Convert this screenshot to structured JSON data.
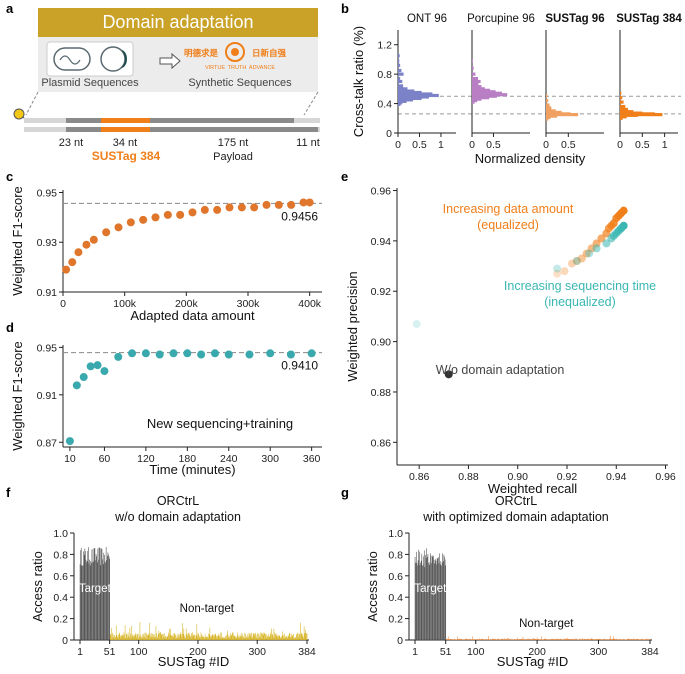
{
  "figure": {
    "panel_labels": [
      "a",
      "b",
      "c",
      "d",
      "e",
      "f",
      "g"
    ]
  },
  "panel_a": {
    "banner": "Domain adaptation",
    "plasmid_label": "Plasmid Sequences",
    "synthetic_label": "Synthetic Sequences",
    "logo_text": [
      "明德求是",
      "日新自强",
      "VIRTUE",
      "TRUTH",
      "ADVANCE"
    ],
    "segments": [
      {
        "label": "23 nt"
      },
      {
        "label": "34 nt"
      },
      {
        "label": "175 nt"
      },
      {
        "label": "11 nt"
      }
    ],
    "sustag_label": "SUSTag 384",
    "payload_label": "Payload",
    "colors": {
      "banner": "#c9a227",
      "tag": "#f07f1a",
      "bar": "#8a8a8a",
      "light": "#d6d6d6",
      "dot": "#f2c718"
    }
  },
  "chart_data": [
    {
      "id": "b",
      "type": "histogram",
      "ylabel": "Cross-talk ratio (%)",
      "xlabel": "Normalized density",
      "yticks": [
        "0",
        "0.4",
        "0.8",
        "1.2"
      ],
      "ylim": [
        0,
        1.4
      ],
      "reference_lines": [
        0.5,
        0.26
      ],
      "panels": [
        {
          "title": "ONT 96",
          "bold": false,
          "color": "#7b82c8",
          "xticks": [
            "0",
            "0.5",
            "1"
          ],
          "xlim": [
            0,
            1.35
          ],
          "bins": [
            [
              1.05,
              0.04
            ],
            [
              0.98,
              0.03
            ],
            [
              0.92,
              0.05
            ],
            [
              0.85,
              0.08
            ],
            [
              0.8,
              0.13
            ],
            [
              0.74,
              0.05
            ],
            [
              0.7,
              0.1
            ],
            [
              0.64,
              0.12
            ],
            [
              0.6,
              0.22
            ],
            [
              0.57,
              0.38
            ],
            [
              0.55,
              0.55
            ],
            [
              0.53,
              0.8
            ],
            [
              0.51,
              0.95
            ],
            [
              0.49,
              0.72
            ],
            [
              0.47,
              0.55
            ],
            [
              0.45,
              0.35
            ],
            [
              0.43,
              0.2
            ],
            [
              0.41,
              0.1
            ],
            [
              0.39,
              0.06
            ]
          ]
        },
        {
          "title": "Porcupine 96",
          "bold": false,
          "color": "#b97fc4",
          "xticks": [
            "0",
            "0.5"
          ],
          "xlim": [
            0,
            1.35
          ],
          "bins": [
            [
              0.98,
              0.02
            ],
            [
              0.88,
              0.04
            ],
            [
              0.8,
              0.08
            ],
            [
              0.74,
              0.14
            ],
            [
              0.7,
              0.2
            ],
            [
              0.66,
              0.15
            ],
            [
              0.63,
              0.22
            ],
            [
              0.6,
              0.3
            ],
            [
              0.58,
              0.42
            ],
            [
              0.56,
              0.55
            ],
            [
              0.54,
              0.7
            ],
            [
              0.52,
              0.82
            ],
            [
              0.5,
              0.58
            ],
            [
              0.48,
              0.4
            ],
            [
              0.46,
              0.22
            ],
            [
              0.44,
              0.12
            ],
            [
              0.42,
              0.06
            ]
          ]
        },
        {
          "title": "SUSTag 96",
          "bold": true,
          "color": "#f0a060",
          "xticks": [
            "0",
            "0.5"
          ],
          "xlim": [
            0,
            1.3
          ],
          "bins": [
            [
              0.5,
              0.03
            ],
            [
              0.44,
              0.05
            ],
            [
              0.38,
              0.08
            ],
            [
              0.34,
              0.12
            ],
            [
              0.3,
              0.22
            ],
            [
              0.28,
              0.35
            ],
            [
              0.26,
              0.55
            ],
            [
              0.25,
              0.72
            ],
            [
              0.23,
              0.25
            ],
            [
              0.21,
              0.1
            ],
            [
              0.19,
              0.05
            ]
          ]
        },
        {
          "title": "SUSTag 384",
          "bold": true,
          "color": "#f07f1a",
          "xticks": [
            "0",
            "0.5",
            "1"
          ],
          "xlim": [
            0,
            1.3
          ],
          "bins": [
            [
              0.54,
              0.03
            ],
            [
              0.48,
              0.05
            ],
            [
              0.42,
              0.08
            ],
            [
              0.36,
              0.12
            ],
            [
              0.32,
              0.18
            ],
            [
              0.29,
              0.3
            ],
            [
              0.27,
              0.5
            ],
            [
              0.26,
              0.78
            ],
            [
              0.25,
              0.95
            ],
            [
              0.24,
              0.4
            ],
            [
              0.22,
              0.15
            ],
            [
              0.2,
              0.06
            ]
          ]
        }
      ]
    },
    {
      "id": "c",
      "type": "scatter",
      "color": "#e0762c",
      "xlabel": "Adapted data amount",
      "ylabel": "Weighted F1-score",
      "xticks": [
        "0",
        "100k",
        "200k",
        "300k",
        "400k"
      ],
      "xlim": [
        0,
        420
      ],
      "yticks": [
        "0.91",
        "0.93",
        "0.95"
      ],
      "ylim": [
        0.91,
        0.951
      ],
      "reference_line": 0.9456,
      "annotation": "0.9456",
      "x": [
        5,
        15,
        25,
        38,
        50,
        70,
        90,
        110,
        130,
        150,
        170,
        190,
        210,
        230,
        250,
        270,
        290,
        310,
        330,
        350,
        370,
        390,
        400
      ],
      "y": [
        0.919,
        0.922,
        0.926,
        0.929,
        0.931,
        0.934,
        0.936,
        0.938,
        0.939,
        0.94,
        0.941,
        0.941,
        0.942,
        0.943,
        0.943,
        0.944,
        0.944,
        0.944,
        0.945,
        0.945,
        0.945,
        0.946,
        0.946
      ]
    },
    {
      "id": "d",
      "type": "scatter",
      "color": "#3aa9ad",
      "xlabel": "Time (minutes)",
      "ylabel": "Weighted F1-score",
      "xticks": [
        "10",
        "60",
        "120",
        "180",
        "240",
        "300",
        "360"
      ],
      "xvals": [
        10,
        60,
        120,
        180,
        240,
        300,
        360
      ],
      "xlim": [
        0,
        375
      ],
      "yticks": [
        "0.87",
        "0.91",
        "0.95"
      ],
      "ytickvals": [
        0.87,
        0.91,
        0.95
      ],
      "ylim": [
        0.866,
        0.952
      ],
      "reference_line": 0.9456,
      "annotation": "0.9410",
      "legend_text": "New sequencing+training",
      "x": [
        10,
        20,
        30,
        40,
        50,
        60,
        80,
        100,
        120,
        140,
        160,
        180,
        200,
        220,
        240,
        270,
        300,
        330,
        360
      ],
      "y": [
        0.871,
        0.918,
        0.925,
        0.934,
        0.935,
        0.93,
        0.942,
        0.945,
        0.945,
        0.944,
        0.945,
        0.945,
        0.944,
        0.945,
        0.944,
        0.944,
        0.945,
        0.944,
        0.945
      ]
    },
    {
      "id": "e",
      "type": "scatter",
      "xlabel": "Weighted recall",
      "ylabel": "Weighted precision",
      "xticks": [
        "0.86",
        "0.88",
        "0.90",
        "0.92",
        "0.94",
        "0.96"
      ],
      "xtickvals": [
        0.86,
        0.88,
        0.9,
        0.92,
        0.94,
        0.96
      ],
      "xlim": [
        0.851,
        0.961
      ],
      "yticks": [
        "0.86",
        "0.88",
        "0.90",
        "0.92",
        "0.94",
        "0.96"
      ],
      "ytickvals": [
        0.86,
        0.88,
        0.9,
        0.92,
        0.94,
        0.96
      ],
      "ylim": [
        0.851,
        0.961
      ],
      "labels": {
        "orange_1": "Increasing data amount",
        "orange_2": "(equalized)",
        "teal_1": "Increasing sequencing time",
        "teal_2": "(inequalized)",
        "black": "W/o domain adaptation"
      },
      "colors": {
        "orange": "#f07f1a",
        "teal": "#3ab7b2",
        "black": "#333333"
      },
      "series": [
        {
          "name": "data amount",
          "color": "#f07f1a",
          "x": [
            0.916,
            0.919,
            0.922,
            0.924,
            0.926,
            0.928,
            0.93,
            0.932,
            0.934,
            0.936,
            0.937,
            0.938,
            0.939,
            0.94,
            0.941,
            0.942,
            0.943
          ],
          "y": [
            0.927,
            0.928,
            0.931,
            0.932,
            0.933,
            0.935,
            0.937,
            0.939,
            0.941,
            0.943,
            0.945,
            0.946,
            0.947,
            0.949,
            0.95,
            0.951,
            0.952
          ],
          "opacity": [
            0.25,
            0.3,
            0.35,
            0.4,
            0.45,
            0.5,
            0.55,
            0.6,
            0.65,
            0.7,
            0.75,
            0.8,
            0.85,
            0.9,
            0.95,
            1.0,
            1.0
          ]
        },
        {
          "name": "sequencing time",
          "color": "#3ab7b2",
          "x": [
            0.859,
            0.916,
            0.924,
            0.929,
            0.932,
            0.936,
            0.938,
            0.939,
            0.94,
            0.941,
            0.942,
            0.943
          ],
          "y": [
            0.907,
            0.929,
            0.932,
            0.935,
            0.937,
            0.939,
            0.941,
            0.942,
            0.943,
            0.944,
            0.945,
            0.946
          ],
          "opacity": [
            0.2,
            0.3,
            0.35,
            0.4,
            0.5,
            0.55,
            0.6,
            0.7,
            0.75,
            0.8,
            0.9,
            1.0
          ]
        },
        {
          "name": "w/o adaptation",
          "color": "#333333",
          "x": [
            0.872
          ],
          "y": [
            0.887
          ],
          "opacity": [
            1.0
          ]
        }
      ]
    },
    {
      "id": "f",
      "type": "bar",
      "title_1": "ORCtrL",
      "title_2": "w/o domain adaptation",
      "xlabel": "SUSTag #ID",
      "ylabel": "Access ratio",
      "xticks": [
        "1",
        "51",
        "100",
        "200",
        "300",
        "384"
      ],
      "xtickvals": [
        1,
        51,
        100,
        200,
        300,
        384
      ],
      "yticks": [
        "0",
        "0.2",
        "0.4",
        "0.6",
        "0.8",
        "1.0"
      ],
      "ylim": [
        0,
        1.0
      ],
      "target_label": "Target",
      "nontarget_label": "Non-target",
      "target_color": "#555555",
      "nontarget_color": "#d8b62a",
      "n": 384,
      "target_n": 51,
      "target_base": 0.78,
      "target_var": 0.09,
      "nontarget_base": 0.055,
      "nontarget_var": 0.06
    },
    {
      "id": "g",
      "type": "bar",
      "title_1": "ORCtrL",
      "title_2": "with optimized domain adaptation",
      "xlabel": "SUSTag #ID",
      "ylabel": "Access ratio",
      "xticks": [
        "1",
        "51",
        "100",
        "200",
        "300",
        "384"
      ],
      "xtickvals": [
        1,
        51,
        100,
        200,
        300,
        384
      ],
      "yticks": [
        "0",
        "0.2",
        "0.4",
        "0.6",
        "0.8",
        "1.0"
      ],
      "ylim": [
        0,
        1.0
      ],
      "target_label": "Target",
      "nontarget_label": "Non-target",
      "target_color": "#555555",
      "nontarget_color": "#ef8a3a",
      "n": 384,
      "target_n": 51,
      "target_base": 0.77,
      "target_var": 0.09,
      "nontarget_base": 0.01,
      "nontarget_var": 0.015
    }
  ]
}
